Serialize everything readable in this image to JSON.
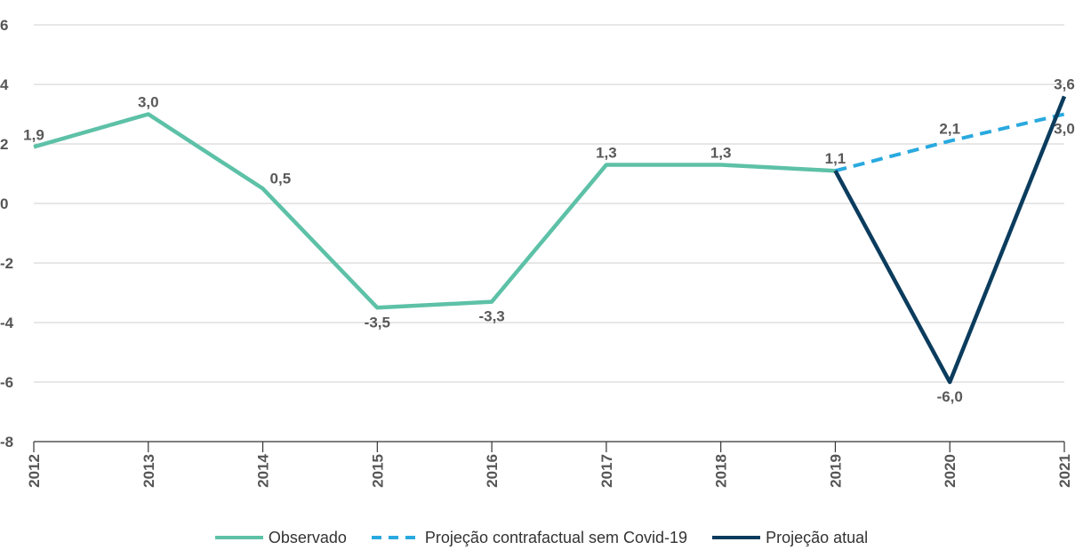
{
  "chart_data": {
    "type": "line",
    "categories": [
      "2012",
      "2013",
      "2014",
      "2015",
      "2016",
      "2017",
      "2018",
      "2019",
      "2020",
      "2021"
    ],
    "ylim": [
      -8,
      6
    ],
    "yticks": [
      6,
      4,
      2,
      0,
      -2,
      -4,
      -6,
      -8
    ],
    "ytick_labels": [
      "6",
      "4",
      "2",
      "0",
      "-2",
      "-4",
      "-6",
      "-8"
    ],
    "grid": "horizontal",
    "legend_position": "bottom",
    "series": [
      {
        "name": "Observado",
        "color": "#5DC1A7",
        "style": "solid",
        "x": [
          "2012",
          "2013",
          "2014",
          "2015",
          "2016",
          "2017",
          "2018",
          "2019"
        ],
        "values": [
          1.9,
          3.0,
          0.5,
          -3.5,
          -3.3,
          1.3,
          1.3,
          1.1
        ]
      },
      {
        "name": "Projeção contrafactual sem Covid-19",
        "color": "#29A9DF",
        "style": "dashed",
        "x": [
          "2019",
          "2020",
          "2021"
        ],
        "values": [
          1.1,
          2.1,
          3.0
        ]
      },
      {
        "name": "Projeção atual",
        "color": "#0B3C5D",
        "style": "solid",
        "x": [
          "2019",
          "2020",
          "2021"
        ],
        "values": [
          1.1,
          -6.0,
          3.6
        ]
      }
    ],
    "data_labels": [
      {
        "x": "2012",
        "y": 1.9,
        "text": "1,9",
        "pos": "above"
      },
      {
        "x": "2013",
        "y": 3.0,
        "text": "3,0",
        "pos": "above"
      },
      {
        "x": "2014",
        "y": 0.5,
        "text": "0,5",
        "pos": "right"
      },
      {
        "x": "2015",
        "y": -3.5,
        "text": "-3,5",
        "pos": "below"
      },
      {
        "x": "2016",
        "y": -3.3,
        "text": "-3,3",
        "pos": "below"
      },
      {
        "x": "2017",
        "y": 1.3,
        "text": "1,3",
        "pos": "above"
      },
      {
        "x": "2018",
        "y": 1.3,
        "text": "1,3",
        "pos": "above"
      },
      {
        "x": "2019",
        "y": 1.1,
        "text": "1,1",
        "pos": "above"
      },
      {
        "x": "2020",
        "y": -6.0,
        "text": "-6,0",
        "pos": "below"
      },
      {
        "x": "2020",
        "y": 2.1,
        "text": "2,1",
        "pos": "above"
      },
      {
        "x": "2021",
        "y": 3.6,
        "text": "3,6",
        "pos": "above"
      },
      {
        "x": "2021",
        "y": 3.0,
        "text": "3,0",
        "pos": "below"
      }
    ]
  }
}
